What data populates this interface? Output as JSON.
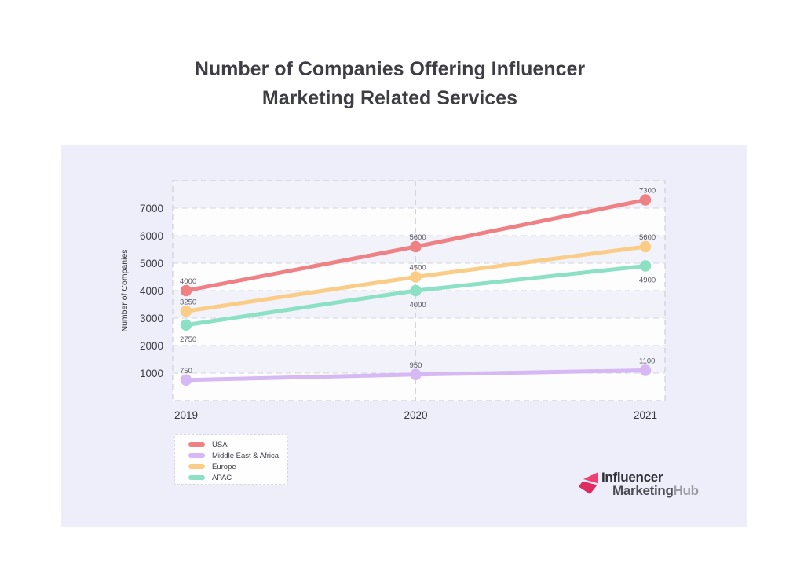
{
  "title": {
    "line1": "Number of Companies Offering Influencer",
    "line2": "Marketing Related Services"
  },
  "chart_data": {
    "type": "line",
    "title": "Number of Companies Offering Influencer Marketing Related Services",
    "categories": [
      "2019",
      "2020",
      "2021"
    ],
    "series": [
      {
        "name": "USA",
        "color": "#ef8083",
        "values": [
          4000,
          5600,
          7300
        ],
        "label_position": "above"
      },
      {
        "name": "Middle East & Africa",
        "color": "#d5b8f4",
        "values": [
          750,
          950,
          1100
        ],
        "label_position": "above"
      },
      {
        "name": "Europe",
        "color": "#facd87",
        "values": [
          3250,
          4500,
          5600
        ],
        "label_position": "above"
      },
      {
        "name": "APAC",
        "color": "#8ce0c3",
        "values": [
          2750,
          4000,
          4900
        ],
        "label_position": "below"
      }
    ],
    "xlabel": "",
    "ylabel": "Number of Companies",
    "ylim": [
      0,
      8000
    ],
    "yticks": [
      1000,
      2000,
      3000,
      4000,
      5000,
      6000,
      7000
    ],
    "grid": "dashed",
    "gridline_color": "#d4d4de",
    "stripe_color": "#f2f2fa",
    "plot_background": "#fdfdfe",
    "legend_position": "bottom-left",
    "point_labels_visible": true
  },
  "legend": {
    "items": [
      "USA",
      "Middle East & Africa",
      "Europe",
      "APAC"
    ]
  },
  "logo": {
    "line1": "Influencer",
    "line2_part1": "Marketing",
    "line2_part2": "Hub",
    "icon_color_top": "#ee4170",
    "icon_color_bottom": "#dc2c60"
  }
}
